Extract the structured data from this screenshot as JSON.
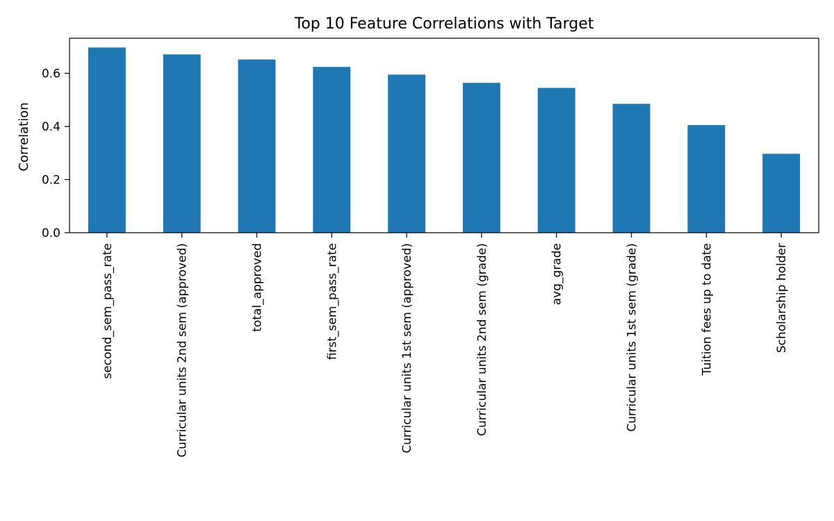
{
  "chart_data": {
    "type": "bar",
    "title": "Top 10 Feature Correlations with Target",
    "xlabel": "",
    "ylabel": "Correlation",
    "categories": [
      "second_sem_pass_rate",
      "Curricular units 2nd sem (approved)",
      "total_approved",
      "first_sem_pass_rate",
      "Curricular units 1st sem (approved)",
      "Curricular units 2nd sem (grade)",
      "avg_grade",
      "Curricular units 1st sem (grade)",
      "Tuition fees up to date",
      "Scholarship holder"
    ],
    "values": [
      0.697,
      0.671,
      0.652,
      0.624,
      0.595,
      0.564,
      0.545,
      0.485,
      0.405,
      0.297
    ],
    "yticks": [
      0.0,
      0.2,
      0.4,
      0.6
    ],
    "ytick_labels": [
      "0.0",
      "0.2",
      "0.4",
      "0.6"
    ],
    "ylim": [
      0,
      0.732
    ],
    "bar_color": "#1f77b4",
    "grid": false,
    "legend": "none"
  }
}
